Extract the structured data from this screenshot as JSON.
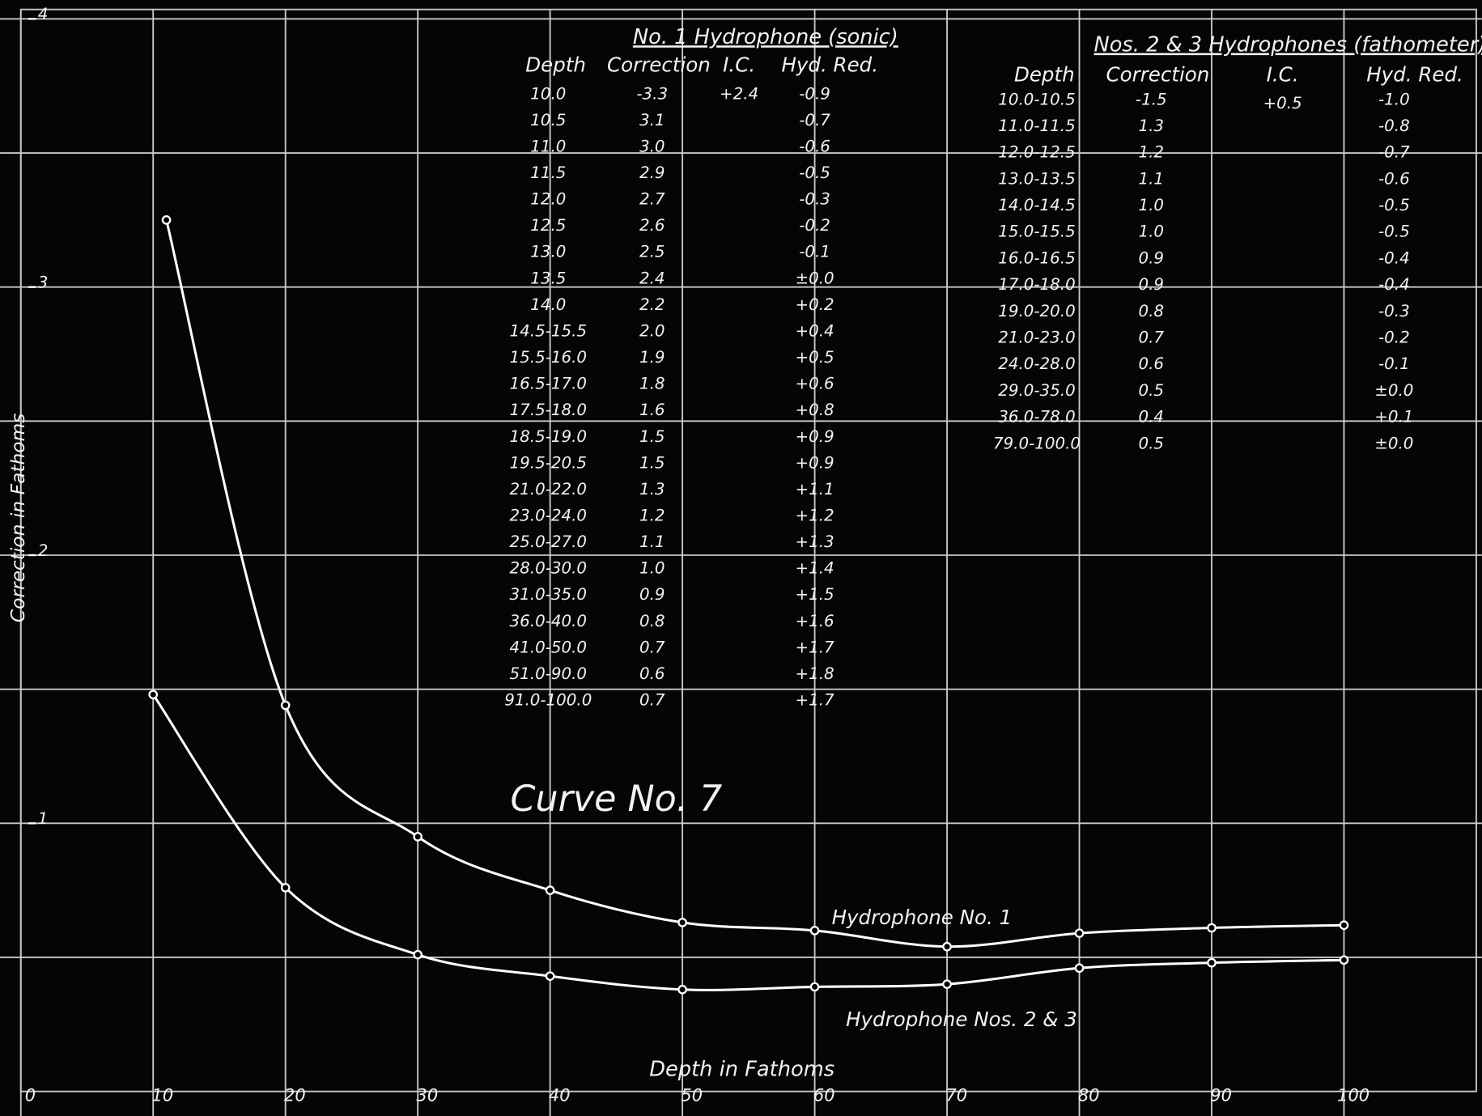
{
  "chart_data": {
    "type": "line",
    "annotation": "Curve No. 7",
    "xlabel": "Depth in Fathoms",
    "ylabel": "Correction in Fathoms",
    "xlim": [
      0,
      110
    ],
    "ylim": [
      0,
      4
    ],
    "xticks": [
      0,
      10,
      20,
      30,
      40,
      50,
      60,
      70,
      80,
      90,
      100
    ],
    "yticks": [
      1,
      2,
      3,
      4
    ],
    "grid_y": [
      0.5,
      1,
      1.5,
      2,
      2.5,
      3,
      3.5,
      4
    ],
    "grid": true,
    "series": [
      {
        "name": "Hydrophone No. 1",
        "color": "#ffffff",
        "x": [
          11,
          20,
          30,
          40,
          50,
          60,
          70,
          80,
          90,
          100
        ],
        "values": [
          3.25,
          1.44,
          0.95,
          0.75,
          0.63,
          0.6,
          0.54,
          0.59,
          0.61,
          0.62
        ]
      },
      {
        "name": "Hydrophone Nos. 2 & 3",
        "color": "#ffffff",
        "x": [
          10,
          20,
          30,
          40,
          50,
          60,
          70,
          80,
          90,
          100
        ],
        "values": [
          1.48,
          0.76,
          0.51,
          0.43,
          0.38,
          0.39,
          0.4,
          0.46,
          0.48,
          0.49
        ]
      }
    ]
  },
  "tables": [
    {
      "title": "No. 1 Hydrophone (sonic)",
      "headers": [
        "Depth",
        "Correction",
        "I.C.",
        "Hyd. Red."
      ],
      "ic": "+2.4",
      "rows": [
        [
          "10.0",
          "-3.3",
          "-0.9"
        ],
        [
          "10.5",
          "3.1",
          "-0.7"
        ],
        [
          "11.0",
          "3.0",
          "-0.6"
        ],
        [
          "11.5",
          "2.9",
          "-0.5"
        ],
        [
          "12.0",
          "2.7",
          "-0.3"
        ],
        [
          "12.5",
          "2.6",
          "-0.2"
        ],
        [
          "13.0",
          "2.5",
          "-0.1"
        ],
        [
          "13.5",
          "2.4",
          "±0.0"
        ],
        [
          "14.0",
          "2.2",
          "+0.2"
        ],
        [
          "14.5-15.5",
          "2.0",
          "+0.4"
        ],
        [
          "15.5-16.0",
          "1.9",
          "+0.5"
        ],
        [
          "16.5-17.0",
          "1.8",
          "+0.6"
        ],
        [
          "17.5-18.0",
          "1.6",
          "+0.8"
        ],
        [
          "18.5-19.0",
          "1.5",
          "+0.9"
        ],
        [
          "19.5-20.5",
          "1.5",
          "+0.9"
        ],
        [
          "21.0-22.0",
          "1.3",
          "+1.1"
        ],
        [
          "23.0-24.0",
          "1.2",
          "+1.2"
        ],
        [
          "25.0-27.0",
          "1.1",
          "+1.3"
        ],
        [
          "28.0-30.0",
          "1.0",
          "+1.4"
        ],
        [
          "31.0-35.0",
          "0.9",
          "+1.5"
        ],
        [
          "36.0-40.0",
          "0.8",
          "+1.6"
        ],
        [
          "41.0-50.0",
          "0.7",
          "+1.7"
        ],
        [
          "51.0-90.0",
          "0.6",
          "+1.8"
        ],
        [
          "91.0-100.0",
          "0.7",
          "+1.7"
        ]
      ]
    },
    {
      "title": "Nos. 2 & 3 Hydrophones (fathometer)",
      "headers": [
        "Depth",
        "Correction",
        "I.C.",
        "Hyd. Red."
      ],
      "ic": "+0.5",
      "rows": [
        [
          "10.0-10.5",
          "-1.5",
          "-1.0"
        ],
        [
          "11.0-11.5",
          "1.3",
          "-0.8"
        ],
        [
          "12.0-12.5",
          "1.2",
          "-0.7"
        ],
        [
          "13.0-13.5",
          "1.1",
          "-0.6"
        ],
        [
          "14.0-14.5",
          "1.0",
          "-0.5"
        ],
        [
          "15.0-15.5",
          "1.0",
          "-0.5"
        ],
        [
          "16.0-16.5",
          "0.9",
          "-0.4"
        ],
        [
          "17.0-18.0",
          "0.9",
          "-0.4"
        ],
        [
          "19.0-20.0",
          "0.8",
          "-0.3"
        ],
        [
          "21.0-23.0",
          "0.7",
          "-0.2"
        ],
        [
          "24.0-28.0",
          "0.6",
          "-0.1"
        ],
        [
          "29.0-35.0",
          "0.5",
          "±0.0"
        ],
        [
          "36.0-78.0",
          "0.4",
          "+0.1"
        ],
        [
          "79.0-100.0",
          "0.5",
          "±0.0"
        ]
      ]
    }
  ]
}
